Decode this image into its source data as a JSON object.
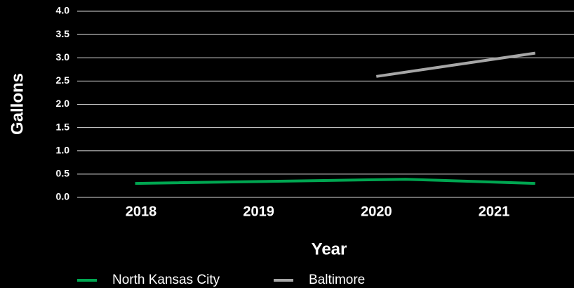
{
  "chart_data": {
    "type": "line",
    "xlabel": "Year",
    "ylabel": "Gallons",
    "categories": [
      "2018",
      "2019",
      "2020",
      "2021"
    ],
    "ylim": [
      0,
      4.0
    ],
    "yticks": [
      "0.0",
      "0.5",
      "1.0",
      "1.5",
      "2.0",
      "2.5",
      "3.0",
      "3.5",
      "4.0"
    ],
    "grid": true,
    "legend_position": "bottom",
    "series": [
      {
        "name": "North Kansas City",
        "color": "#00a651",
        "x": [
          2017.95,
          2020.25,
          2021.35
        ],
        "values": [
          0.3,
          0.39,
          0.3
        ]
      },
      {
        "name": "Baltimore",
        "color": "#a6a6a6",
        "x": [
          2020.0,
          2021.35
        ],
        "values": [
          2.6,
          3.1
        ]
      }
    ]
  }
}
